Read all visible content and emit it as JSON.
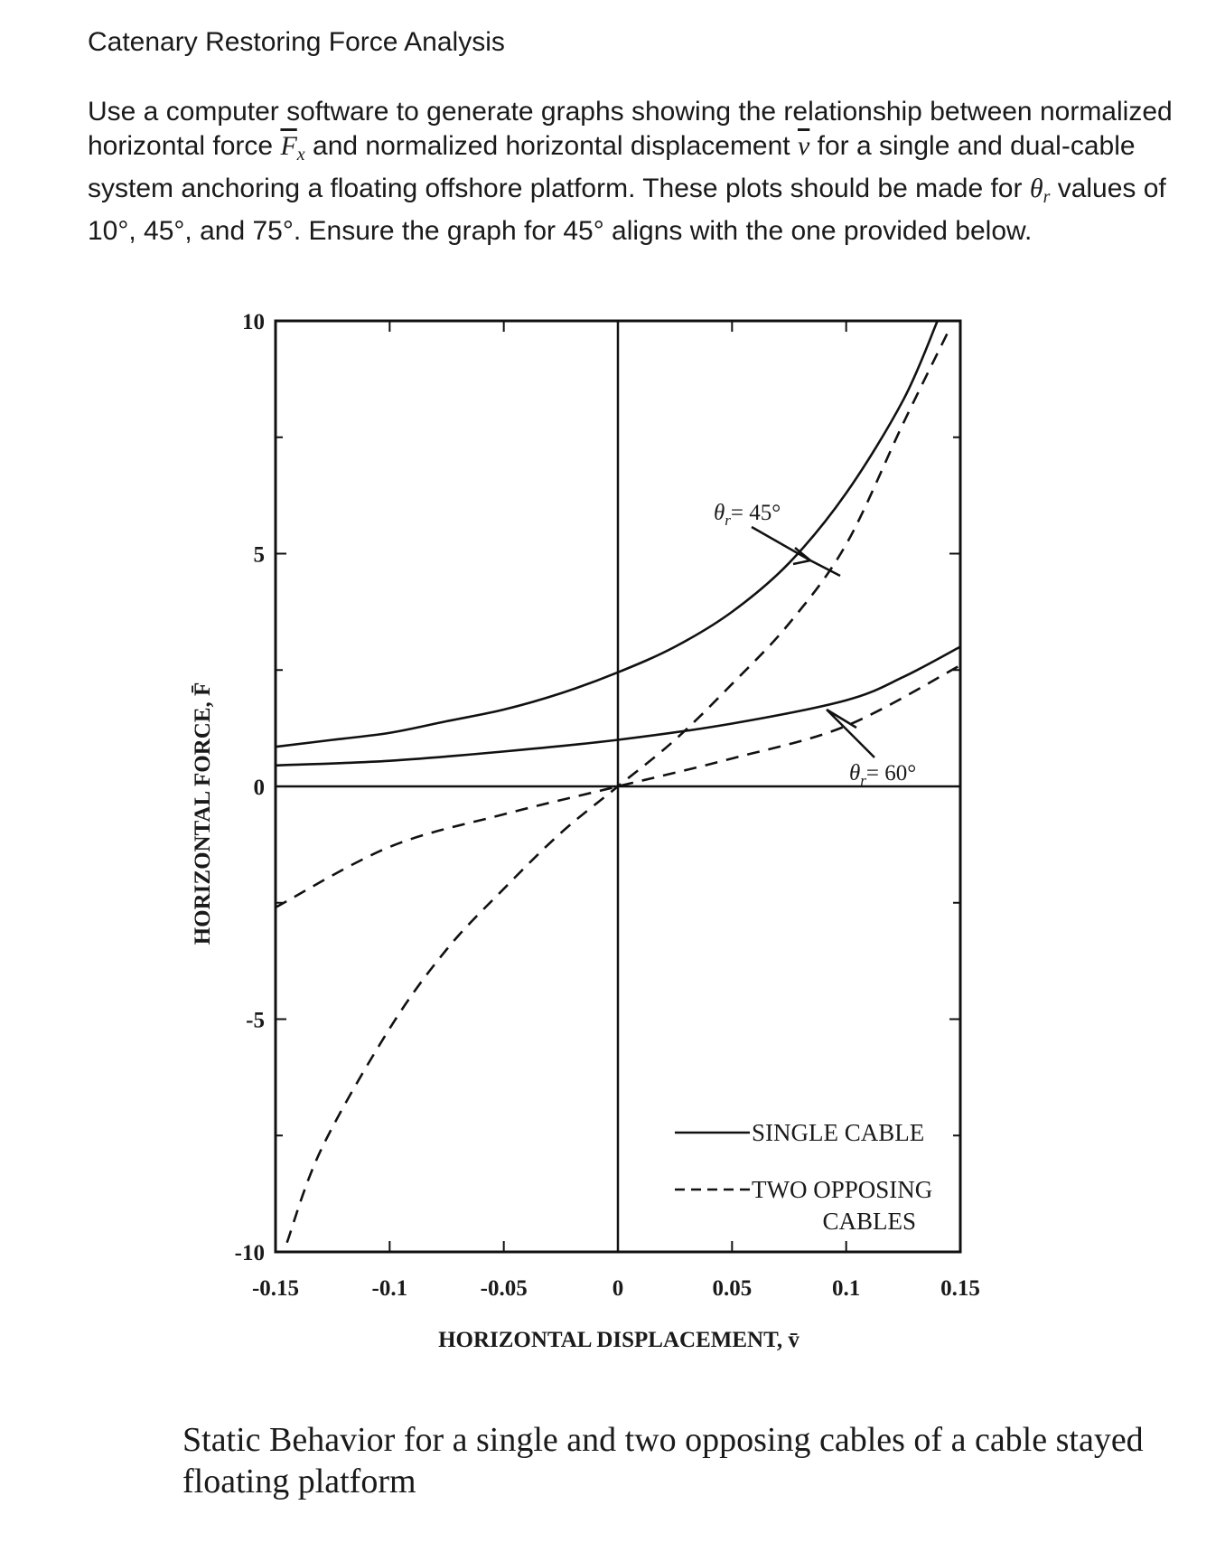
{
  "document": {
    "title": "Catenary Restoring Force Analysis",
    "problem": {
      "t1": "Use a computer software to generate graphs showing the relationship between normalized horizontal force ",
      "fx_base": "F",
      "fx_sub": "x",
      "t2": " and normalized horizontal displacement ",
      "v_sym": "v",
      "t3": " for a single and dual-cable system anchoring a floating offshore platform. These plots should be made for ",
      "theta": "θ",
      "theta_sub": "r",
      "t4": " values of 10°, 45°, and 75°. Ensure the graph for 45° aligns with the one provided below."
    },
    "caption": "Static Behavior for a single and two opposing cables of a cable stayed floating platform"
  },
  "chart_data": {
    "type": "line",
    "xlabel": "HORIZONTAL DISPLACEMENT, v̄",
    "ylabel": "HORIZONTAL FORCE, F̄",
    "xlim": [
      -0.15,
      0.15
    ],
    "ylim": [
      -10,
      10
    ],
    "xticks": [
      "-0.15",
      "-0.1",
      "-0.05",
      "0",
      "0.05",
      "0.1",
      "0.15"
    ],
    "yticks": [
      "10",
      "5",
      "0",
      "-5",
      "-10"
    ],
    "grid": false,
    "annotations": [
      {
        "label": "θr = 45°",
        "text_a": "θ",
        "text_sub": "r",
        "text_b": "= 45°"
      },
      {
        "label": "θr = 60°",
        "text_a": "θ",
        "text_sub": "r",
        "text_b": "= 60°"
      }
    ],
    "legend": {
      "placement": "bottom-right",
      "entries": [
        {
          "label": "SINGLE CABLE",
          "style": "solid"
        },
        {
          "label_line1": "TWO OPPOSING",
          "label_line2": "CABLES",
          "style": "dashed"
        }
      ]
    },
    "series": [
      {
        "group": "θr = 45°",
        "style": "solid",
        "x": [
          -0.15,
          -0.125,
          -0.1,
          -0.075,
          -0.05,
          -0.025,
          0,
          0.025,
          0.05,
          0.075,
          0.1,
          0.125,
          0.14
        ],
        "y": [
          0.85,
          1.0,
          1.15,
          1.4,
          1.65,
          2.0,
          2.45,
          3.0,
          3.75,
          4.8,
          6.3,
          8.3,
          10.0
        ]
      },
      {
        "group": "θr = 45°",
        "style": "dashed",
        "x": [
          -0.145,
          -0.13,
          -0.1,
          -0.075,
          -0.05,
          -0.025,
          0,
          0.025,
          0.05,
          0.075,
          0.1,
          0.125,
          0.145
        ],
        "y": [
          -9.8,
          -7.8,
          -5.2,
          -3.5,
          -2.2,
          -1.0,
          0,
          1.0,
          2.2,
          3.5,
          5.2,
          7.8,
          9.8
        ]
      },
      {
        "group": "θr = 60°",
        "style": "solid",
        "x": [
          -0.15,
          -0.1,
          -0.05,
          0,
          0.05,
          0.1,
          0.125,
          0.15
        ],
        "y": [
          0.45,
          0.55,
          0.75,
          1.0,
          1.35,
          1.85,
          2.35,
          3.0
        ]
      },
      {
        "group": "θr = 60°",
        "style": "dashed",
        "x": [
          -0.15,
          -0.1,
          -0.05,
          0,
          0.05,
          0.1,
          0.15
        ],
        "y": [
          -2.6,
          -1.3,
          -0.6,
          0,
          0.6,
          1.3,
          2.6
        ]
      }
    ]
  }
}
